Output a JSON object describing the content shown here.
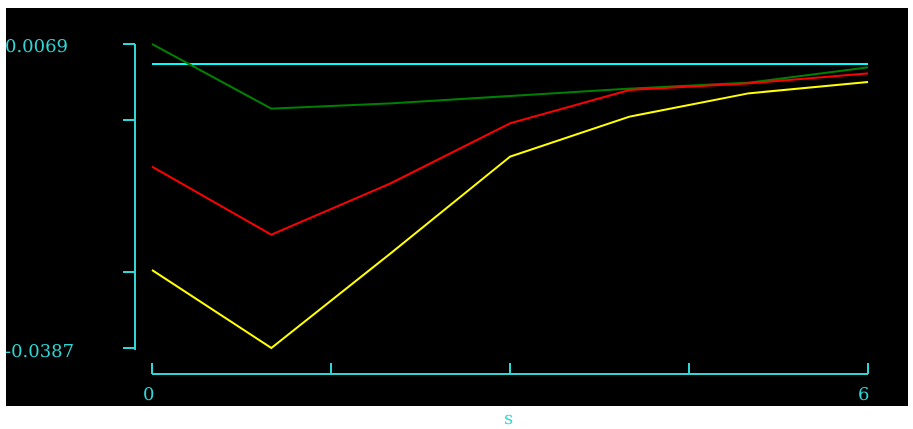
{
  "chart_data": {
    "type": "line",
    "title": "",
    "xlabel": "s",
    "ylabel": "",
    "xlim": [
      0,
      6
    ],
    "ylim": [
      -0.0387,
      0.0069
    ],
    "y_tick_labels": [
      "0.0069",
      "-0.0387"
    ],
    "x_tick_labels": [
      "0",
      "6"
    ],
    "x": [
      0,
      1,
      2,
      3,
      4,
      5,
      6
    ],
    "series": [
      {
        "color": "#00ffff",
        "values": [
          0.0039,
          0.0039,
          0.0039,
          0.0039,
          0.0039,
          0.0039,
          0.0039
        ]
      },
      {
        "color": "#008000",
        "values": [
          0.0069,
          -0.0028,
          -0.002,
          -0.0009,
          0.0002,
          0.0011,
          0.0034
        ]
      },
      {
        "color": "#ff0000",
        "values": [
          -0.0115,
          -0.0217,
          -0.014,
          -0.005,
          0.0,
          0.001,
          0.0025
        ]
      },
      {
        "color": "#ffff00",
        "values": [
          -0.027,
          -0.0387,
          -0.0245,
          -0.01,
          -0.004,
          -0.0005,
          0.0012
        ]
      }
    ],
    "grid": false,
    "legend": "none"
  }
}
